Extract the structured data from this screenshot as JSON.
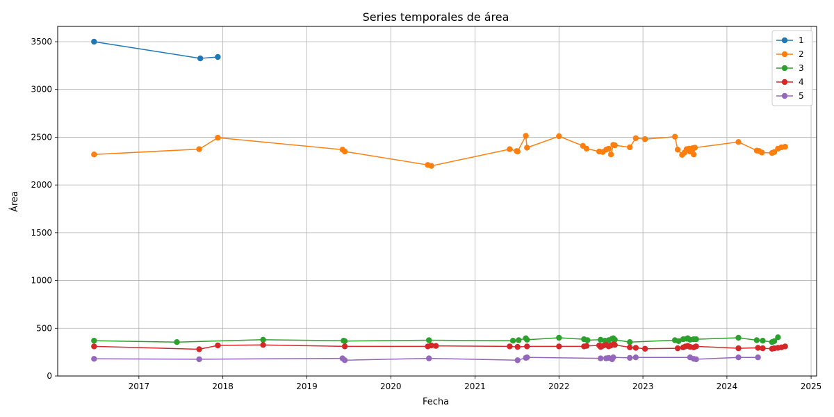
{
  "chart_data": {
    "type": "line",
    "title": "Series temporales de área",
    "xlabel": "Fecha",
    "ylabel": "Área",
    "x_ticks": [
      "2017",
      "2018",
      "2019",
      "2020",
      "2021",
      "2022",
      "2023",
      "2024",
      "2025"
    ],
    "y_ticks": [
      "0",
      "500",
      "1000",
      "1500",
      "2000",
      "2500",
      "3000",
      "3500"
    ],
    "xlim": [
      "2016-01-14",
      "2025-01-25"
    ],
    "ylim": [
      0,
      3660
    ],
    "grid": true,
    "legend_position": "top-right",
    "series": [
      {
        "name": "1",
        "color": "#1f77b4",
        "points": [
          [
            "2016-06-20",
            3500
          ],
          [
            "2017-09-25",
            3325
          ],
          [
            "2017-12-10",
            3340
          ]
        ]
      },
      {
        "name": "2",
        "color": "#ff7f0e",
        "points": [
          [
            "2016-06-20",
            2320
          ],
          [
            "2017-09-20",
            2375
          ],
          [
            "2017-12-10",
            2495
          ],
          [
            "2019-06-05",
            2370
          ],
          [
            "2019-06-15",
            2350
          ],
          [
            "2020-06-10",
            2210
          ],
          [
            "2020-06-25",
            2200
          ],
          [
            "2021-06-01",
            2375
          ],
          [
            "2021-07-01",
            2355
          ],
          [
            "2021-07-05",
            2350
          ],
          [
            "2021-08-10",
            2515
          ],
          [
            "2021-08-15",
            2390
          ],
          [
            "2022-01-01",
            2510
          ],
          [
            "2022-04-15",
            2410
          ],
          [
            "2022-05-01",
            2380
          ],
          [
            "2022-06-25",
            2350
          ],
          [
            "2022-07-10",
            2345
          ],
          [
            "2022-07-25",
            2370
          ],
          [
            "2022-08-05",
            2380
          ],
          [
            "2022-08-15",
            2320
          ],
          [
            "2022-08-25",
            2420
          ],
          [
            "2022-09-01",
            2415
          ],
          [
            "2022-11-05",
            2395
          ],
          [
            "2022-12-01",
            2490
          ],
          [
            "2023-01-10",
            2480
          ],
          [
            "2023-05-20",
            2505
          ],
          [
            "2023-06-01",
            2370
          ],
          [
            "2023-06-20",
            2315
          ],
          [
            "2023-07-01",
            2340
          ],
          [
            "2023-07-10",
            2375
          ],
          [
            "2023-07-20",
            2380
          ],
          [
            "2023-07-25",
            2350
          ],
          [
            "2023-08-05",
            2385
          ],
          [
            "2023-08-10",
            2320
          ],
          [
            "2023-08-15",
            2390
          ],
          [
            "2024-02-20",
            2450
          ],
          [
            "2024-05-10",
            2360
          ],
          [
            "2024-05-20",
            2355
          ],
          [
            "2024-06-01",
            2340
          ],
          [
            "2024-07-15",
            2335
          ],
          [
            "2024-07-25",
            2345
          ],
          [
            "2024-08-10",
            2380
          ],
          [
            "2024-08-25",
            2395
          ],
          [
            "2024-09-10",
            2400
          ]
        ]
      },
      {
        "name": "3",
        "color": "#2ca02c",
        "points": [
          [
            "2016-06-20",
            370
          ],
          [
            "2017-06-15",
            355
          ],
          [
            "2018-06-25",
            380
          ],
          [
            "2019-06-10",
            370
          ],
          [
            "2019-06-15",
            365
          ],
          [
            "2020-06-15",
            375
          ],
          [
            "2021-06-15",
            370
          ],
          [
            "2021-07-10",
            375
          ],
          [
            "2021-08-10",
            395
          ],
          [
            "2021-08-15",
            380
          ],
          [
            "2022-01-01",
            400
          ],
          [
            "2022-04-20",
            385
          ],
          [
            "2022-05-05",
            375
          ],
          [
            "2022-07-01",
            380
          ],
          [
            "2022-07-20",
            370
          ],
          [
            "2022-08-05",
            375
          ],
          [
            "2022-08-20",
            390
          ],
          [
            "2022-08-25",
            395
          ],
          [
            "2022-09-01",
            380
          ],
          [
            "2022-11-05",
            355
          ],
          [
            "2023-05-20",
            375
          ],
          [
            "2023-06-05",
            365
          ],
          [
            "2023-06-25",
            385
          ],
          [
            "2023-07-10",
            390
          ],
          [
            "2023-07-15",
            395
          ],
          [
            "2023-07-25",
            380
          ],
          [
            "2023-08-10",
            385
          ],
          [
            "2023-08-20",
            385
          ],
          [
            "2024-02-20",
            400
          ],
          [
            "2024-05-10",
            375
          ],
          [
            "2024-06-05",
            370
          ],
          [
            "2024-07-15",
            355
          ],
          [
            "2024-07-25",
            365
          ],
          [
            "2024-08-10",
            405
          ]
        ]
      },
      {
        "name": "4",
        "color": "#d62728",
        "points": [
          [
            "2016-06-20",
            310
          ],
          [
            "2017-09-20",
            280
          ],
          [
            "2017-12-10",
            320
          ],
          [
            "2018-06-25",
            325
          ],
          [
            "2019-06-15",
            310
          ],
          [
            "2020-06-10",
            310
          ],
          [
            "2020-06-25",
            320
          ],
          [
            "2020-07-15",
            315
          ],
          [
            "2021-06-01",
            310
          ],
          [
            "2021-07-05",
            305
          ],
          [
            "2021-08-15",
            310
          ],
          [
            "2022-01-01",
            310
          ],
          [
            "2022-04-20",
            310
          ],
          [
            "2022-05-01",
            315
          ],
          [
            "2022-06-25",
            320
          ],
          [
            "2022-07-01",
            305
          ],
          [
            "2022-07-10",
            315
          ],
          [
            "2022-07-25",
            325
          ],
          [
            "2022-08-05",
            310
          ],
          [
            "2022-08-15",
            320
          ],
          [
            "2022-08-25",
            330
          ],
          [
            "2022-09-01",
            325
          ],
          [
            "2022-11-05",
            300
          ],
          [
            "2022-12-01",
            295
          ],
          [
            "2023-01-10",
            285
          ],
          [
            "2023-06-01",
            290
          ],
          [
            "2023-06-25",
            300
          ],
          [
            "2023-07-05",
            310
          ],
          [
            "2023-07-15",
            315
          ],
          [
            "2023-07-25",
            305
          ],
          [
            "2023-08-10",
            300
          ],
          [
            "2023-08-20",
            310
          ],
          [
            "2024-02-20",
            290
          ],
          [
            "2024-05-15",
            295
          ],
          [
            "2024-06-05",
            290
          ],
          [
            "2024-07-15",
            285
          ],
          [
            "2024-07-25",
            290
          ],
          [
            "2024-08-10",
            295
          ],
          [
            "2024-08-25",
            300
          ],
          [
            "2024-09-10",
            310
          ]
        ]
      },
      {
        "name": "5",
        "color": "#9467bd",
        "points": [
          [
            "2016-06-20",
            180
          ],
          [
            "2017-09-20",
            175
          ],
          [
            "2019-06-05",
            185
          ],
          [
            "2019-06-15",
            165
          ],
          [
            "2020-06-15",
            185
          ],
          [
            "2021-07-05",
            165
          ],
          [
            "2021-08-10",
            190
          ],
          [
            "2021-08-15",
            195
          ],
          [
            "2022-07-01",
            185
          ],
          [
            "2022-07-25",
            185
          ],
          [
            "2022-08-05",
            190
          ],
          [
            "2022-08-20",
            175
          ],
          [
            "2022-08-25",
            195
          ],
          [
            "2022-11-05",
            190
          ],
          [
            "2022-12-01",
            195
          ],
          [
            "2023-07-25",
            195
          ],
          [
            "2023-08-10",
            180
          ],
          [
            "2023-08-20",
            175
          ],
          [
            "2024-02-20",
            195
          ],
          [
            "2024-05-15",
            195
          ]
        ]
      }
    ]
  }
}
